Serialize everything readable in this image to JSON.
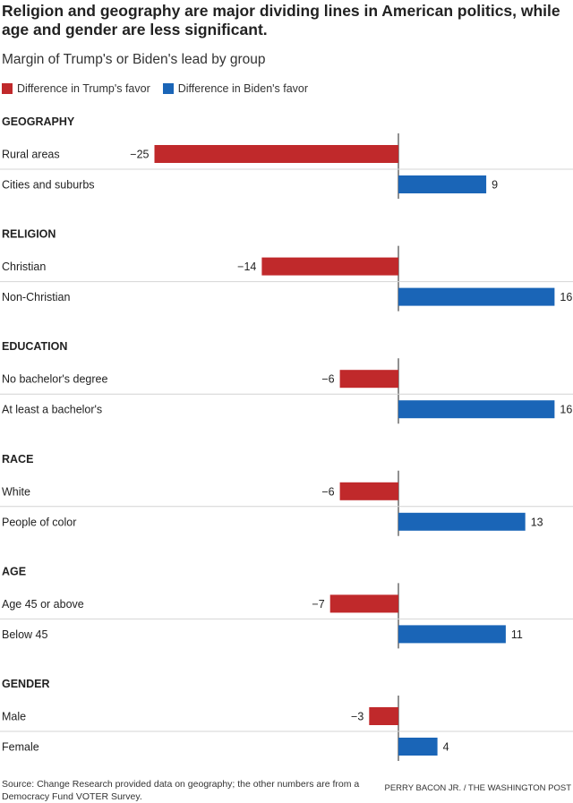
{
  "title": "Religion and geography are major dividing lines in American politics, while age and gender are less significant.",
  "subtitle": "Margin of Trump's or Biden's lead by group",
  "legend": {
    "trump_label": "Difference in Trump's favor",
    "biden_label": "Difference in Biden's favor"
  },
  "colors": {
    "trump": "#c0292b",
    "biden": "#1a65b7"
  },
  "chart_data": {
    "type": "bar",
    "orientation": "horizontal",
    "title": "Religion and geography are major dividing lines in American politics, while age and gender are less significant.",
    "subtitle": "Margin of Trump's or Biden's lead by group",
    "xlim": [
      -25,
      16
    ],
    "legend_position": "top-left",
    "groups": [
      {
        "name": "GEOGRAPHY",
        "categories": [
          {
            "label": "Rural areas",
            "value": -25,
            "value_label": "−25"
          },
          {
            "label": "Cities and suburbs",
            "value": 9,
            "value_label": "9"
          }
        ]
      },
      {
        "name": "RELIGION",
        "categories": [
          {
            "label": "Christian",
            "value": -14,
            "value_label": "−14"
          },
          {
            "label": "Non-Christian",
            "value": 16,
            "value_label": "16"
          }
        ]
      },
      {
        "name": "EDUCATION",
        "categories": [
          {
            "label": "No bachelor's degree",
            "value": -6,
            "value_label": "−6"
          },
          {
            "label": "At least a bachelor's",
            "value": 16,
            "value_label": "16"
          }
        ]
      },
      {
        "name": "RACE",
        "categories": [
          {
            "label": "White",
            "value": -6,
            "value_label": "−6"
          },
          {
            "label": "People of color",
            "value": 13,
            "value_label": "13"
          }
        ]
      },
      {
        "name": "AGE",
        "categories": [
          {
            "label": "Age 45 or above",
            "value": -7,
            "value_label": "−7"
          },
          {
            "label": "Below 45",
            "value": 11,
            "value_label": "11"
          }
        ]
      },
      {
        "name": "GENDER",
        "categories": [
          {
            "label": "Male",
            "value": -3,
            "value_label": "−3"
          },
          {
            "label": "Female",
            "value": 4,
            "value_label": "4"
          }
        ]
      }
    ]
  },
  "footer": {
    "source": "Source: Change Research provided data on geography; the other numbers are from a Democracy Fund VOTER Survey.",
    "credit": "PERRY BACON JR. / THE WASHINGTON POST"
  }
}
